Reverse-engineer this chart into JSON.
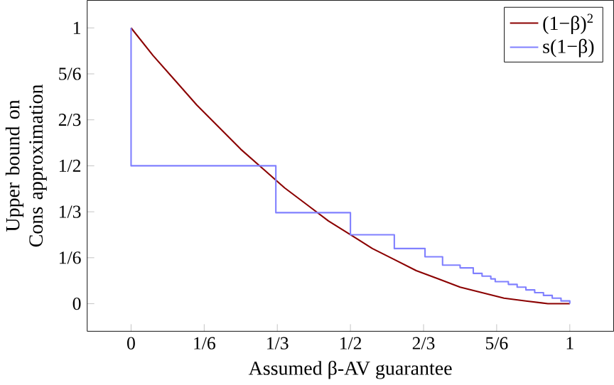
{
  "chart_data": {
    "type": "line",
    "xlabel": "Assumed β-AV guarantee",
    "ylabel": "Upper bound on Cons approximation",
    "xlim": [
      -0.1,
      1.1
    ],
    "ylim": [
      -0.1,
      1.1
    ],
    "xticks": [
      0,
      {
        "value": 0.1667,
        "label": "1/6"
      },
      {
        "value": 0.3333,
        "label": "1/3"
      },
      {
        "value": 0.5,
        "label": "1/2"
      },
      {
        "value": 0.6667,
        "label": "2/3"
      },
      {
        "value": 0.8333,
        "label": "5/6"
      },
      1
    ],
    "yticks": [
      0,
      {
        "value": 0.1667,
        "label": "1/6"
      },
      {
        "value": 0.3333,
        "label": "1/3"
      },
      {
        "value": 0.5,
        "label": "1/2"
      },
      {
        "value": 0.6667,
        "label": "2/3"
      },
      {
        "value": 0.8333,
        "label": "5/6"
      },
      1
    ],
    "legend": "top right",
    "marker": "none",
    "line_style": "solid",
    "series": [
      {
        "name": "(1−β)$^{2}$",
        "color": "#8b0000",
        "x": [
          0,
          0.05,
          0.1,
          0.15,
          0.2,
          0.25,
          0.3,
          0.35,
          0.4,
          0.45,
          0.5,
          0.55,
          0.6,
          0.65,
          0.7,
          0.75,
          0.8,
          0.85,
          0.9,
          0.95,
          1
        ],
        "values": [
          1,
          0.9,
          0.81,
          0.72,
          0.64,
          0.56,
          0.49,
          0.42,
          0.36,
          0.3,
          0.25,
          0.2,
          0.16,
          0.12,
          0.09,
          0.06,
          0.04,
          0.02,
          0.01,
          0,
          0
        ]
      },
      {
        "name": "s(1−β)",
        "color": "#8080ff",
        "type": "step",
        "x": [
          0,
          0,
          0.33,
          0.5,
          0.6,
          0.67,
          0.71,
          0.75,
          0.78,
          0.8,
          0.82,
          0.83,
          0.85,
          0.86,
          0.87,
          0.88,
          0.89,
          0.9,
          0.91,
          0.92,
          0.93,
          0.94,
          0.95,
          0.96,
          0.97,
          0.98,
          1
        ],
        "values": [
          1,
          0.5,
          0.33,
          0.25,
          0.2,
          0.17,
          0.14,
          0.13,
          0.11,
          0.1,
          0.09,
          0.08,
          0.08,
          0.07,
          0.07,
          0.06,
          0.06,
          0.05,
          0.05,
          0.04,
          0.04,
          0.03,
          0.03,
          0.02,
          0.02,
          0.01,
          0
        ]
      }
    ]
  }
}
